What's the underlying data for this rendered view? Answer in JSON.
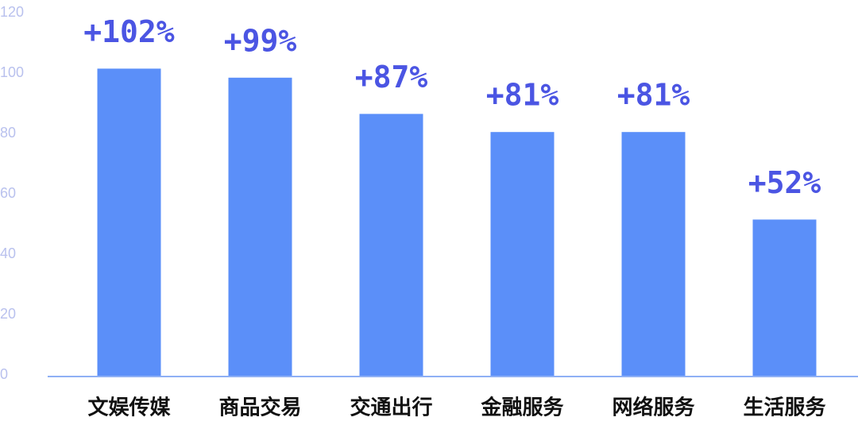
{
  "chart_data": {
    "type": "bar",
    "categories": [
      "文娱传媒",
      "商品交易",
      "交通出行",
      "金融服务",
      "网络服务",
      "生活服务"
    ],
    "values": [
      102,
      99,
      87,
      81,
      81,
      52
    ],
    "value_labels": [
      "+102%",
      "+99%",
      "+87%",
      "+81%",
      "+81%",
      "+52%"
    ],
    "color": "#5b8ff9",
    "ylim": [
      0,
      120
    ],
    "yticks": [
      0,
      20,
      40,
      60,
      80,
      100,
      120
    ],
    "grid": false
  }
}
